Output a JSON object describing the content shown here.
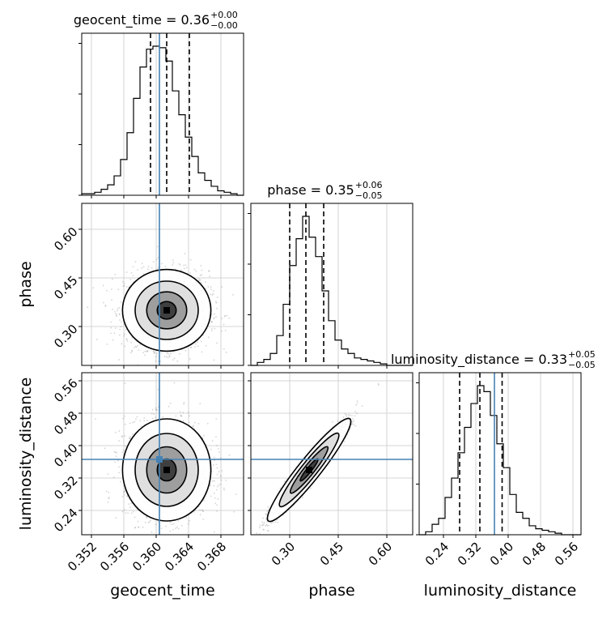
{
  "chart_data": {
    "type": "corner",
    "parameters": [
      "geocent_time",
      "phase",
      "luminosity_distance"
    ],
    "truths": {
      "geocent_time": 0.3604,
      "phase": null,
      "luminosity_distance": 0.366
    },
    "titles": {
      "geocent_time": {
        "name": "geocent_time",
        "median": "0.36",
        "plus": "+0.00",
        "minus": "−0.00"
      },
      "phase": {
        "name": "phase",
        "median": "0.35",
        "plus": "+0.06",
        "minus": "−0.05"
      },
      "luminosity_distance": {
        "name": "luminosity_distance",
        "median": "0.33",
        "plus": "+0.05",
        "minus": "−0.05"
      }
    },
    "axes": {
      "geocent_time": {
        "range": [
          0.3508,
          0.3708
        ],
        "ticks": [
          0.352,
          0.356,
          0.36,
          0.364,
          0.368
        ],
        "ticklabels": [
          "0.352",
          "0.356",
          "0.360",
          "0.364",
          "0.368"
        ],
        "label": "geocent_time"
      },
      "phase": {
        "range": [
          0.18,
          0.68
        ],
        "ticks": [
          0.3,
          0.45,
          0.6
        ],
        "ticklabels": [
          "0.30",
          "0.45",
          "0.60"
        ],
        "label": "phase"
      },
      "luminosity_distance": {
        "range": [
          0.18,
          0.58
        ],
        "ticks": [
          0.24,
          0.32,
          0.4,
          0.48,
          0.56
        ],
        "ticklabels": [
          "0.24",
          "0.32",
          "0.40",
          "0.48",
          "0.56"
        ],
        "label": "luminosity_distance"
      }
    },
    "quantiles": {
      "geocent_time": [
        0.3593,
        0.3613,
        0.3641
      ],
      "phase": [
        0.3,
        0.35,
        0.405
      ],
      "luminosity_distance": [
        0.28,
        0.33,
        0.385
      ]
    },
    "histograms": {
      "geocent_time": {
        "edges": [
          0.3508,
          0.3516,
          0.3524,
          0.3532,
          0.354,
          0.3548,
          0.3556,
          0.3564,
          0.3572,
          0.358,
          0.3588,
          0.3596,
          0.3604,
          0.3612,
          0.362,
          0.3628,
          0.3636,
          0.3644,
          0.3652,
          0.366,
          0.3668,
          0.3676,
          0.3684,
          0.3692,
          0.37,
          0.3708
        ],
        "counts": [
          1,
          1,
          2,
          4,
          7,
          13,
          24,
          42,
          65,
          86,
          98,
          100,
          99,
          90,
          70,
          54,
          39,
          26,
          15,
          10,
          6,
          3,
          2,
          1,
          0
        ]
      },
      "phase": {
        "edges": [
          0.18,
          0.2,
          0.22,
          0.24,
          0.26,
          0.28,
          0.3,
          0.32,
          0.34,
          0.36,
          0.38,
          0.4,
          0.42,
          0.44,
          0.46,
          0.48,
          0.5,
          0.52,
          0.54,
          0.56,
          0.58,
          0.6,
          0.62,
          0.64,
          0.66,
          0.68
        ],
        "counts": [
          0,
          2,
          4,
          8,
          20,
          41,
          67,
          85,
          100,
          86,
          73,
          50,
          30,
          17,
          11,
          8,
          5,
          4,
          3,
          2,
          1,
          0,
          0,
          0,
          0
        ]
      },
      "luminosity_distance": {
        "edges": [
          0.18,
          0.196,
          0.212,
          0.228,
          0.244,
          0.26,
          0.276,
          0.292,
          0.308,
          0.324,
          0.34,
          0.356,
          0.372,
          0.388,
          0.404,
          0.42,
          0.436,
          0.452,
          0.468,
          0.484,
          0.5,
          0.516,
          0.532,
          0.548,
          0.564,
          0.58
        ],
        "counts": [
          0,
          2,
          7,
          11,
          25,
          38,
          55,
          72,
          88,
          100,
          96,
          80,
          61,
          45,
          27,
          15,
          11,
          6,
          4,
          3,
          2,
          1,
          0,
          0,
          0
        ]
      }
    },
    "joint": {
      "phase|geocent_time": {
        "center": [
          0.3613,
          0.35
        ],
        "sigma": [
          0.0026,
          0.06
        ],
        "rho": 0.0
      },
      "luminosity_distance|geocent_time": {
        "center": [
          0.3613,
          0.34
        ],
        "sigma": [
          0.0026,
          0.06
        ],
        "rho": 0.0
      },
      "luminosity_distance|phase": {
        "center": [
          0.36,
          0.34
        ],
        "sigma": [
          0.06,
          0.06
        ],
        "rho": 0.97
      }
    },
    "grid": true,
    "colors": {
      "truth": "#4682b4",
      "hist": "#000000",
      "density": "#000000",
      "scatter": "#888888",
      "grid": "#c8c8c8"
    }
  }
}
